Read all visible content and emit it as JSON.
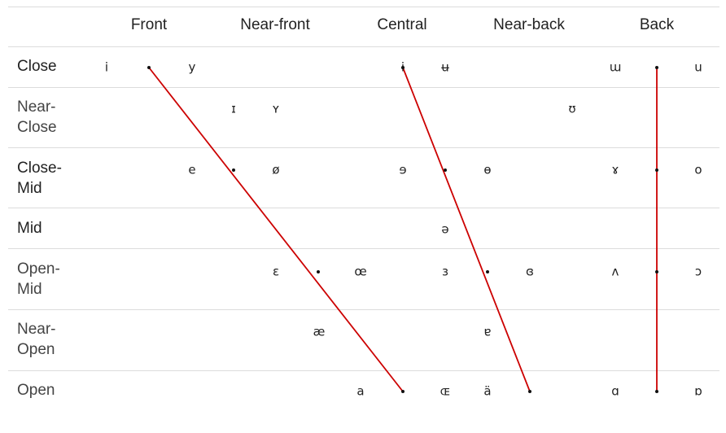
{
  "columns": [
    "Front",
    "Near-front",
    "Central",
    "Near-back",
    "Back"
  ],
  "rows": [
    {
      "label": "Close"
    },
    {
      "label": "Near-\nClose"
    },
    {
      "label": "Close-\nMid"
    },
    {
      "label": "Mid"
    },
    {
      "label": "Open-\nMid"
    },
    {
      "label": "Near-\nOpen"
    },
    {
      "label": "Open"
    }
  ],
  "vowels": [
    {
      "row": 0,
      "slot": "c0a",
      "symbol": "i"
    },
    {
      "row": 0,
      "slot": "c0b",
      "symbol": "y"
    },
    {
      "row": 0,
      "slot": "c2a",
      "symbol": "ɨ"
    },
    {
      "row": 0,
      "slot": "c2b",
      "symbol": "ʉ"
    },
    {
      "row": 0,
      "slot": "c4a",
      "symbol": "ɯ"
    },
    {
      "row": 0,
      "slot": "c4b",
      "symbol": "u"
    },
    {
      "row": 1,
      "slot": "nfA",
      "symbol": "ɪ"
    },
    {
      "row": 1,
      "slot": "nfB",
      "symbol": "ʏ"
    },
    {
      "row": 1,
      "slot": "nb",
      "symbol": "ʊ"
    },
    {
      "row": 2,
      "slot": "c0b",
      "symbol": "e"
    },
    {
      "row": 2,
      "slot": "nfB",
      "symbol": "ø"
    },
    {
      "row": 2,
      "slot": "c2a",
      "symbol": "ɘ"
    },
    {
      "row": 2,
      "slot": "c3a",
      "symbol": "ɵ"
    },
    {
      "row": 2,
      "slot": "c4a",
      "symbol": "ɤ"
    },
    {
      "row": 2,
      "slot": "c4b",
      "symbol": "o"
    },
    {
      "row": 3,
      "slot": "c2b",
      "symbol": "ə"
    },
    {
      "row": 4,
      "slot": "nfB",
      "symbol": "ɛ"
    },
    {
      "row": 4,
      "slot": "c2l",
      "symbol": "œ"
    },
    {
      "row": 4,
      "slot": "c2b",
      "symbol": "ɜ"
    },
    {
      "row": 4,
      "slot": "c3b",
      "symbol": "ɞ"
    },
    {
      "row": 4,
      "slot": "c4a",
      "symbol": "ʌ"
    },
    {
      "row": 4,
      "slot": "c4b",
      "symbol": "ɔ"
    },
    {
      "row": 5,
      "slot": "nfC",
      "symbol": "æ"
    },
    {
      "row": 5,
      "slot": "c3a",
      "symbol": "ɐ"
    },
    {
      "row": 6,
      "slot": "c2l",
      "symbol": "a"
    },
    {
      "row": 6,
      "slot": "c2b",
      "symbol": "ɶ"
    },
    {
      "row": 6,
      "slot": "c3a",
      "symbol": "ä"
    },
    {
      "row": 6,
      "slot": "c4a",
      "symbol": "ɑ"
    },
    {
      "row": 6,
      "slot": "c4b",
      "symbol": "ɒ"
    }
  ],
  "dots": [
    {
      "row": 0,
      "slot": "d-front-close"
    },
    {
      "row": 0,
      "slot": "d-central-close"
    },
    {
      "row": 0,
      "slot": "d-back"
    },
    {
      "row": 2,
      "slot": "d-front-closemid"
    },
    {
      "row": 2,
      "slot": "d-central-closemid"
    },
    {
      "row": 2,
      "slot": "d-back"
    },
    {
      "row": 4,
      "slot": "d-front-openmid"
    },
    {
      "row": 4,
      "slot": "d-central-openmid"
    },
    {
      "row": 4,
      "slot": "d-back"
    },
    {
      "row": 6,
      "slot": "d-front-open"
    },
    {
      "row": 6,
      "slot": "d-central-open"
    },
    {
      "row": 6,
      "slot": "d-back"
    }
  ],
  "line_color": "#cc0000"
}
